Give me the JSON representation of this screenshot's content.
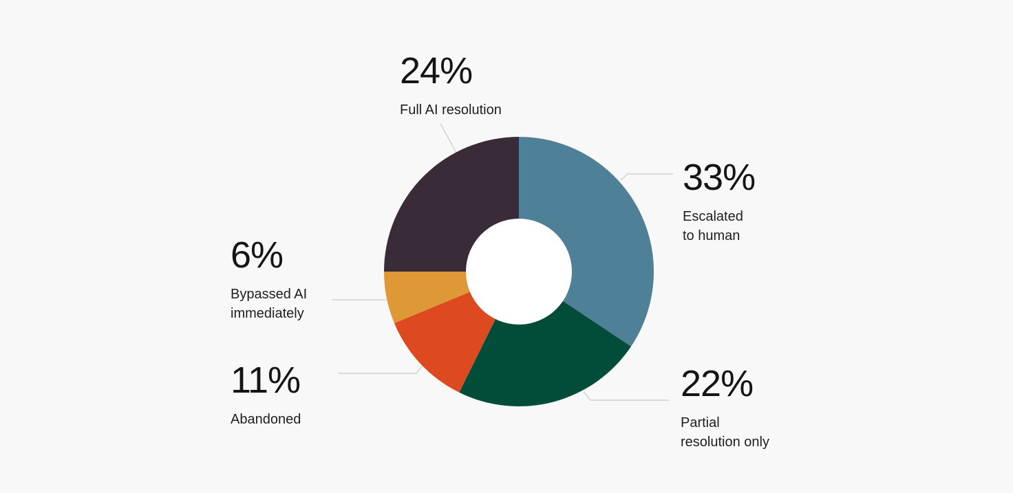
{
  "chart_data": {
    "type": "pie",
    "donut": true,
    "slices": [
      {
        "label": "Escalated to human",
        "label_lines": [
          "Escalated",
          "to human"
        ],
        "value": 33,
        "value_label": "33%",
        "color": "#4e8198"
      },
      {
        "label": "Partial resolution only",
        "label_lines": [
          "Partial",
          "resolution only"
        ],
        "value": 22,
        "value_label": "22%",
        "color": "#024d39"
      },
      {
        "label": "Abandoned",
        "label_lines": [
          "Abandoned"
        ],
        "value": 11,
        "value_label": "11%",
        "color": "#dd4a1f"
      },
      {
        "label": "Bypassed AI immediately",
        "label_lines": [
          "Bypassed AI",
          "immediately"
        ],
        "value": 6,
        "value_label": "6%",
        "color": "#de9836"
      },
      {
        "label": "Full AI resolution",
        "label_lines": [
          "Full AI resolution"
        ],
        "value": 24,
        "value_label": "24%",
        "color": "#3a2b39"
      }
    ],
    "start": "top",
    "direction": "clockwise"
  }
}
